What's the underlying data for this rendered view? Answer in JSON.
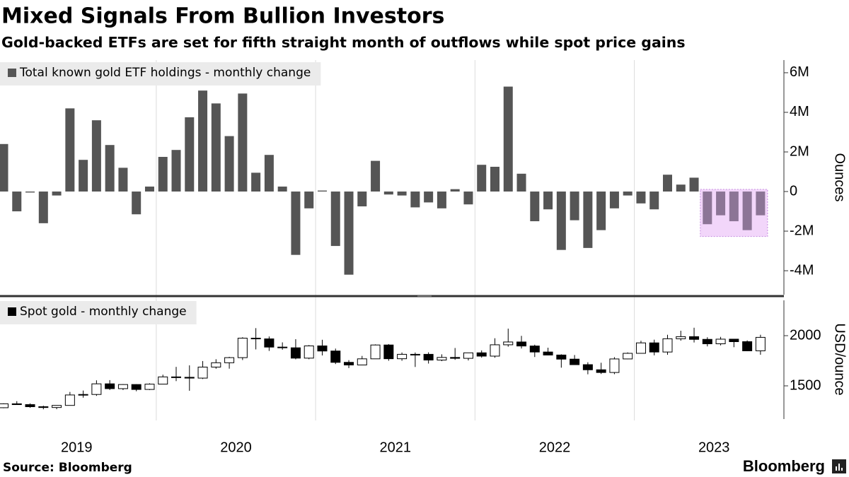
{
  "title": "Mixed Signals From Bullion Investors",
  "subtitle": "Gold-backed ETFs are set for fifth straight month of outflows while spot price gains",
  "source": "Source: Bloomberg",
  "brand": "Bloomberg",
  "chart_data": [
    {
      "type": "bar",
      "y_label": "Ounces",
      "categories": [
        null,
        null,
        null,
        null,
        null,
        null,
        null,
        null,
        null,
        null,
        null,
        null,
        null,
        null,
        null,
        null,
        null,
        null,
        null,
        null,
        null,
        null,
        null,
        null,
        null,
        null,
        null,
        null,
        null,
        null,
        null,
        null,
        null,
        null,
        null,
        null,
        null,
        null,
        null,
        null,
        null,
        null,
        null,
        null,
        null,
        null,
        null,
        null,
        null,
        null,
        null,
        null,
        null,
        null,
        null,
        null,
        null,
        null
      ],
      "series": [
        {
          "name": "Total known gold ETF holdings - monthly change",
          "color": "#555555",
          "values": [
            2400000,
            -1000000,
            -50000,
            -1600000,
            -200000,
            4200000,
            1600000,
            3600000,
            2350000,
            1200000,
            -1150000,
            250000,
            1750000,
            2100000,
            3750000,
            5100000,
            4450000,
            2800000,
            4950000,
            950000,
            1850000,
            250000,
            -3200000,
            -850000,
            50000,
            -2750000,
            -4200000,
            -750000,
            1550000,
            -150000,
            -200000,
            -800000,
            -550000,
            -850000,
            120000,
            -650000,
            1350000,
            1250000,
            5300000,
            900000,
            -1500000,
            -900000,
            -2950000,
            -1450000,
            -2850000,
            -1950000,
            -850000,
            -200000,
            -600000,
            -900000,
            850000,
            350000,
            700000,
            -1650000,
            -1200000,
            -1500000,
            -1950000,
            -1200000
          ]
        }
      ],
      "highlight": {
        "from": 53,
        "to": 57,
        "color": "#8c7596",
        "box_fill": "#f2d6fa",
        "box_stroke": "#c58be0"
      },
      "ylim": [
        -5210000,
        6640000
      ],
      "yticks": [
        {
          "value": 6000000,
          "label": "6M"
        },
        {
          "value": 4000000,
          "label": "4M"
        },
        {
          "value": 2000000,
          "label": "2M"
        },
        0,
        {
          "value": -2000000,
          "label": "-2M"
        },
        {
          "value": -4000000,
          "label": "-4M"
        }
      ]
    },
    {
      "type": "candlestick",
      "y_label": "USD/ounce",
      "categories": [
        null,
        null,
        null,
        null,
        null,
        null,
        null,
        null,
        null,
        null,
        null,
        null,
        null,
        null,
        null,
        null,
        null,
        null,
        null,
        null,
        null,
        null,
        null,
        null,
        null,
        null,
        null,
        null,
        null,
        null,
        null,
        null,
        null,
        null,
        null,
        null,
        null,
        null,
        null,
        null,
        null,
        null,
        null,
        null,
        null,
        null,
        null,
        null,
        null,
        null,
        null,
        null,
        null,
        null,
        null,
        null,
        null,
        null
      ],
      "series": [
        {
          "name": "Spot gold - monthly change",
          "color": "#000000",
          "up_color": "#ffffff",
          "down_color": "#000000",
          "open": [
            1282,
            1321,
            1313,
            1292,
            1284,
            1305,
            1409,
            1414,
            1520,
            1472,
            1513,
            1464,
            1517,
            1589,
            1585,
            1577,
            1687,
            1730,
            1781,
            1975,
            1968,
            1886,
            1879,
            1776,
            1898,
            1847,
            1734,
            1708,
            1769,
            1907,
            1770,
            1814,
            1814,
            1757,
            1783,
            1774,
            1829,
            1796,
            1909,
            1937,
            1897,
            1837,
            1807,
            1766,
            1711,
            1660,
            1633,
            1768,
            1824,
            1928,
            1837,
            1969,
            1990,
            1963,
            1919,
            1965,
            1940,
            1849
          ],
          "high": [
            1326,
            1347,
            1325,
            1302,
            1306,
            1439,
            1453,
            1555,
            1557,
            1517,
            1516,
            1525,
            1611,
            1689,
            1704,
            1747,
            1765,
            1789,
            1984,
            2075,
            1992,
            1933,
            1965,
            1906,
            1959,
            1871,
            1756,
            1798,
            1913,
            1916,
            1832,
            1832,
            1834,
            1814,
            1877,
            1831,
            1853,
            1974,
            2070,
            1998,
            1910,
            1880,
            1814,
            1807,
            1735,
            1730,
            1786,
            1833,
            1949,
            1960,
            2009,
            2049,
            2079,
            1984,
            1988,
            1965,
            1953,
            2009
          ],
          "low": [
            1277,
            1310,
            1281,
            1266,
            1267,
            1306,
            1382,
            1400,
            1459,
            1458,
            1446,
            1458,
            1517,
            1547,
            1451,
            1568,
            1670,
            1671,
            1757,
            1863,
            1848,
            1860,
            1764,
            1765,
            1803,
            1717,
            1677,
            1706,
            1768,
            1750,
            1750,
            1688,
            1722,
            1746,
            1759,
            1753,
            1781,
            1780,
            1890,
            1872,
            1787,
            1805,
            1681,
            1709,
            1615,
            1618,
            1616,
            1765,
            1823,
            1804,
            1810,
            1950,
            1932,
            1893,
            1903,
            1885,
            1846,
            1810
          ],
          "close": [
            1321,
            1313,
            1292,
            1284,
            1305,
            1409,
            1414,
            1520,
            1472,
            1513,
            1464,
            1517,
            1589,
            1585,
            1577,
            1687,
            1730,
            1781,
            1975,
            1968,
            1886,
            1879,
            1776,
            1898,
            1847,
            1734,
            1708,
            1769,
            1907,
            1770,
            1814,
            1814,
            1757,
            1783,
            1774,
            1829,
            1796,
            1909,
            1937,
            1897,
            1837,
            1807,
            1766,
            1711,
            1660,
            1633,
            1768,
            1824,
            1928,
            1837,
            1969,
            1990,
            1963,
            1919,
            1965,
            1940,
            1849,
            1983
          ]
        }
      ],
      "ylim": [
        1176,
        2352
      ],
      "yticks": [
        2000,
        1500
      ],
      "xticks": [
        {
          "value": 5.5,
          "label": "2019"
        },
        {
          "value": 17.5,
          "label": "2020"
        },
        {
          "value": 29.5,
          "label": "2021"
        },
        {
          "value": 41.5,
          "label": "2022"
        },
        {
          "value": 53.5,
          "label": "2023"
        }
      ]
    }
  ]
}
